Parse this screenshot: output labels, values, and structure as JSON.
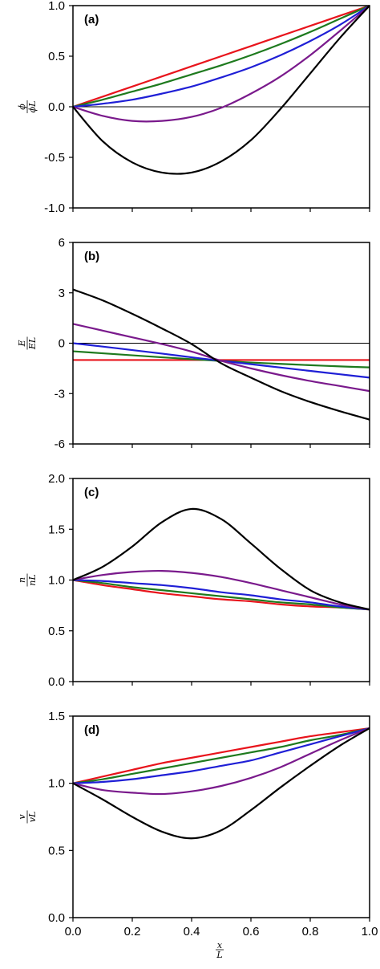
{
  "chart_data": [
    {
      "panel": "(a)",
      "type": "line",
      "ylabel_num": "ϕ",
      "ylabel_den": "ϕL",
      "ylim": [
        -1.0,
        1.0
      ],
      "yticks": [
        "-1.0",
        "-0.5",
        "0.0",
        "0.5",
        "1.0"
      ],
      "yticks_values": [
        -1.0,
        -0.5,
        0.0,
        0.5,
        1.0
      ],
      "zero_line": true,
      "x": [
        0.0,
        0.1,
        0.2,
        0.3,
        0.4,
        0.5,
        0.6,
        0.7,
        0.8,
        0.9,
        1.0
      ],
      "series": [
        {
          "color": "#e8141c",
          "values": [
            0.0,
            0.1,
            0.2,
            0.3,
            0.4,
            0.5,
            0.6,
            0.7,
            0.8,
            0.9,
            1.0
          ]
        },
        {
          "color": "#1e7a1e",
          "values": [
            0.0,
            0.07,
            0.15,
            0.23,
            0.32,
            0.41,
            0.51,
            0.62,
            0.74,
            0.87,
            1.0
          ]
        },
        {
          "color": "#1f1fd6",
          "values": [
            0.0,
            0.03,
            0.07,
            0.13,
            0.2,
            0.29,
            0.39,
            0.51,
            0.65,
            0.81,
            1.0
          ]
        },
        {
          "color": "#7a1a8c",
          "values": [
            0.0,
            -0.09,
            -0.14,
            -0.14,
            -0.1,
            -0.01,
            0.13,
            0.3,
            0.51,
            0.75,
            1.0
          ]
        },
        {
          "color": "#000000",
          "values": [
            0.0,
            -0.34,
            -0.55,
            -0.65,
            -0.65,
            -0.54,
            -0.33,
            -0.02,
            0.33,
            0.68,
            1.0
          ]
        }
      ]
    },
    {
      "panel": "(b)",
      "type": "line",
      "ylabel_num": "E",
      "ylabel_den": "EL",
      "ylim": [
        -6,
        6
      ],
      "yticks": [
        "-6",
        "-3",
        "0",
        "3",
        "6"
      ],
      "yticks_values": [
        -6,
        -3,
        0,
        3,
        6
      ],
      "zero_line": true,
      "x": [
        0.0,
        0.1,
        0.2,
        0.3,
        0.4,
        0.5,
        0.6,
        0.7,
        0.8,
        0.9,
        1.0
      ],
      "series": [
        {
          "color": "#e8141c",
          "values": [
            -1.0,
            -1.0,
            -1.0,
            -1.0,
            -1.0,
            -1.0,
            -1.0,
            -1.0,
            -1.0,
            -1.0,
            -1.0
          ]
        },
        {
          "color": "#1e7a1e",
          "values": [
            -0.48,
            -0.6,
            -0.72,
            -0.84,
            -0.95,
            -1.06,
            -1.15,
            -1.23,
            -1.31,
            -1.38,
            -1.44
          ]
        },
        {
          "color": "#1f1fd6",
          "values": [
            0.0,
            -0.2,
            -0.41,
            -0.62,
            -0.84,
            -1.05,
            -1.25,
            -1.45,
            -1.65,
            -1.85,
            -2.05
          ]
        },
        {
          "color": "#7a1a8c",
          "values": [
            1.15,
            0.75,
            0.35,
            -0.05,
            -0.5,
            -1.05,
            -1.5,
            -1.9,
            -2.25,
            -2.55,
            -2.85
          ]
        },
        {
          "color": "#000000",
          "values": [
            3.2,
            2.55,
            1.75,
            0.88,
            -0.05,
            -1.2,
            -2.05,
            -2.85,
            -3.5,
            -4.05,
            -4.55
          ]
        }
      ]
    },
    {
      "panel": "(c)",
      "type": "line",
      "ylabel_num": "n",
      "ylabel_den": "nL",
      "ylim": [
        0.0,
        2.0
      ],
      "yticks": [
        "0.0",
        "0.5",
        "1.0",
        "1.5",
        "2.0"
      ],
      "yticks_values": [
        0.0,
        0.5,
        1.0,
        1.5,
        2.0
      ],
      "zero_line": false,
      "x": [
        0.0,
        0.1,
        0.2,
        0.3,
        0.4,
        0.5,
        0.6,
        0.7,
        0.8,
        0.9,
        1.0
      ],
      "series": [
        {
          "color": "#e8141c",
          "values": [
            1.0,
            0.95,
            0.91,
            0.87,
            0.84,
            0.81,
            0.79,
            0.76,
            0.74,
            0.73,
            0.71
          ]
        },
        {
          "color": "#1e7a1e",
          "values": [
            1.0,
            0.97,
            0.93,
            0.9,
            0.87,
            0.84,
            0.81,
            0.78,
            0.76,
            0.73,
            0.71
          ]
        },
        {
          "color": "#1f1fd6",
          "values": [
            1.0,
            0.99,
            0.97,
            0.95,
            0.92,
            0.88,
            0.85,
            0.81,
            0.78,
            0.74,
            0.71
          ]
        },
        {
          "color": "#7a1a8c",
          "values": [
            1.0,
            1.05,
            1.08,
            1.09,
            1.07,
            1.03,
            0.97,
            0.9,
            0.83,
            0.76,
            0.71
          ]
        },
        {
          "color": "#000000",
          "values": [
            1.0,
            1.13,
            1.33,
            1.57,
            1.7,
            1.6,
            1.36,
            1.11,
            0.9,
            0.78,
            0.71
          ]
        }
      ]
    },
    {
      "panel": "(d)",
      "type": "line",
      "ylabel_num": "v",
      "ylabel_den": "vL",
      "ylim": [
        0.0,
        1.5
      ],
      "yticks": [
        "0.0",
        "0.5",
        "1.0",
        "1.5"
      ],
      "yticks_values": [
        0.0,
        0.5,
        1.0,
        1.5
      ],
      "zero_line": false,
      "xticks": [
        "0.0",
        "0.2",
        "0.4",
        "0.6",
        "0.8",
        "1.0"
      ],
      "xticks_values": [
        0.0,
        0.2,
        0.4,
        0.6,
        0.8,
        1.0
      ],
      "xlabel_num": "x",
      "xlabel_den": "L",
      "x": [
        0.0,
        0.1,
        0.2,
        0.3,
        0.4,
        0.5,
        0.6,
        0.7,
        0.8,
        0.9,
        1.0
      ],
      "series": [
        {
          "color": "#e8141c",
          "values": [
            1.0,
            1.05,
            1.1,
            1.15,
            1.19,
            1.23,
            1.27,
            1.31,
            1.35,
            1.38,
            1.41
          ]
        },
        {
          "color": "#1e7a1e",
          "values": [
            1.0,
            1.03,
            1.07,
            1.11,
            1.15,
            1.19,
            1.23,
            1.27,
            1.32,
            1.36,
            1.41
          ]
        },
        {
          "color": "#1f1fd6",
          "values": [
            1.0,
            1.01,
            1.03,
            1.06,
            1.09,
            1.13,
            1.17,
            1.23,
            1.29,
            1.35,
            1.41
          ]
        },
        {
          "color": "#7a1a8c",
          "values": [
            1.0,
            0.95,
            0.93,
            0.92,
            0.94,
            0.98,
            1.04,
            1.12,
            1.22,
            1.32,
            1.41
          ]
        },
        {
          "color": "#000000",
          "values": [
            1.0,
            0.88,
            0.75,
            0.64,
            0.59,
            0.65,
            0.8,
            0.97,
            1.13,
            1.28,
            1.41
          ]
        }
      ]
    }
  ]
}
